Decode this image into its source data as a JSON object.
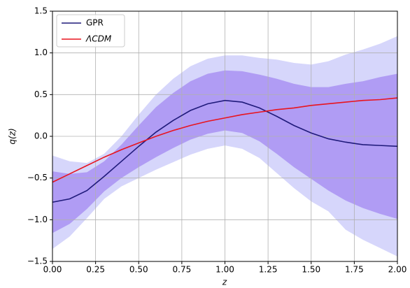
{
  "chart_data": {
    "type": "line",
    "xlabel": "z",
    "ylabel": "q(z)",
    "x": [
      0,
      0.1,
      0.2,
      0.3,
      0.4,
      0.5,
      0.6,
      0.7,
      0.8,
      0.9,
      1.0,
      1.1,
      1.2,
      1.3,
      1.4,
      1.5,
      1.6,
      1.7,
      1.8,
      1.9,
      2.0
    ],
    "series": [
      {
        "name": "GPR",
        "color": "#1f1a7a",
        "values": [
          -0.79,
          -0.75,
          -0.65,
          -0.48,
          -0.3,
          -0.12,
          0.05,
          0.19,
          0.31,
          0.39,
          0.43,
          0.41,
          0.34,
          0.24,
          0.13,
          0.04,
          -0.03,
          -0.07,
          -0.1,
          -0.11,
          -0.12
        ]
      },
      {
        "name": "ΛCDM",
        "color": "#e8141e",
        "values": [
          -0.55,
          -0.45,
          -0.35,
          -0.25,
          -0.16,
          -0.08,
          0.0,
          0.07,
          0.13,
          0.18,
          0.22,
          0.26,
          0.29,
          0.32,
          0.34,
          0.37,
          0.39,
          0.41,
          0.43,
          0.44,
          0.46
        ]
      }
    ],
    "bands": [
      {
        "color": "#d6d6fb",
        "lower": [
          -1.35,
          -1.2,
          -0.98,
          -0.75,
          -0.6,
          -0.5,
          -0.4,
          -0.31,
          -0.22,
          -0.15,
          -0.11,
          -0.15,
          -0.26,
          -0.44,
          -0.62,
          -0.78,
          -0.9,
          -1.12,
          -1.24,
          -1.34,
          -1.44
        ],
        "upper": [
          -0.23,
          -0.3,
          -0.32,
          -0.21,
          0.0,
          0.26,
          0.5,
          0.69,
          0.84,
          0.93,
          0.97,
          0.97,
          0.94,
          0.92,
          0.88,
          0.86,
          0.9,
          0.98,
          1.04,
          1.11,
          1.2
        ]
      },
      {
        "color": "#b09cf4",
        "lower": [
          -1.16,
          -1.05,
          -0.87,
          -0.66,
          -0.5,
          -0.37,
          -0.25,
          -0.14,
          -0.04,
          0.03,
          0.07,
          0.04,
          -0.06,
          -0.21,
          -0.37,
          -0.51,
          -0.65,
          -0.77,
          -0.86,
          -0.93,
          -0.99
        ],
        "upper": [
          -0.42,
          -0.45,
          -0.43,
          -0.3,
          -0.1,
          0.13,
          0.35,
          0.52,
          0.66,
          0.75,
          0.79,
          0.78,
          0.74,
          0.69,
          0.63,
          0.59,
          0.59,
          0.63,
          0.66,
          0.71,
          0.75
        ]
      }
    ],
    "xlim": [
      0,
      2
    ],
    "xticks": [
      {
        "value": 0,
        "label": "0.00"
      },
      {
        "value": 0.25,
        "label": "0.25"
      },
      {
        "value": 0.5,
        "label": "0.50"
      },
      {
        "value": 0.75,
        "label": "0.75"
      },
      {
        "value": 1,
        "label": "1.00"
      },
      {
        "value": 1.25,
        "label": "1.25"
      },
      {
        "value": 1.5,
        "label": "1.50"
      },
      {
        "value": 1.75,
        "label": "1.75"
      },
      {
        "value": 2,
        "label": "2.00"
      }
    ],
    "ylim": [
      -1.5,
      1.5
    ],
    "yticks": [
      {
        "value": -1.5,
        "label": "−1.5"
      },
      {
        "value": -1,
        "label": "−1.0"
      },
      {
        "value": -0.5,
        "label": "−0.5"
      },
      {
        "value": 0,
        "label": "0.0"
      },
      {
        "value": 0.5,
        "label": "0.5"
      },
      {
        "value": 1,
        "label": "1.0"
      },
      {
        "value": 1.5,
        "label": "1.5"
      }
    ],
    "grid": true,
    "legend": "upper left"
  }
}
